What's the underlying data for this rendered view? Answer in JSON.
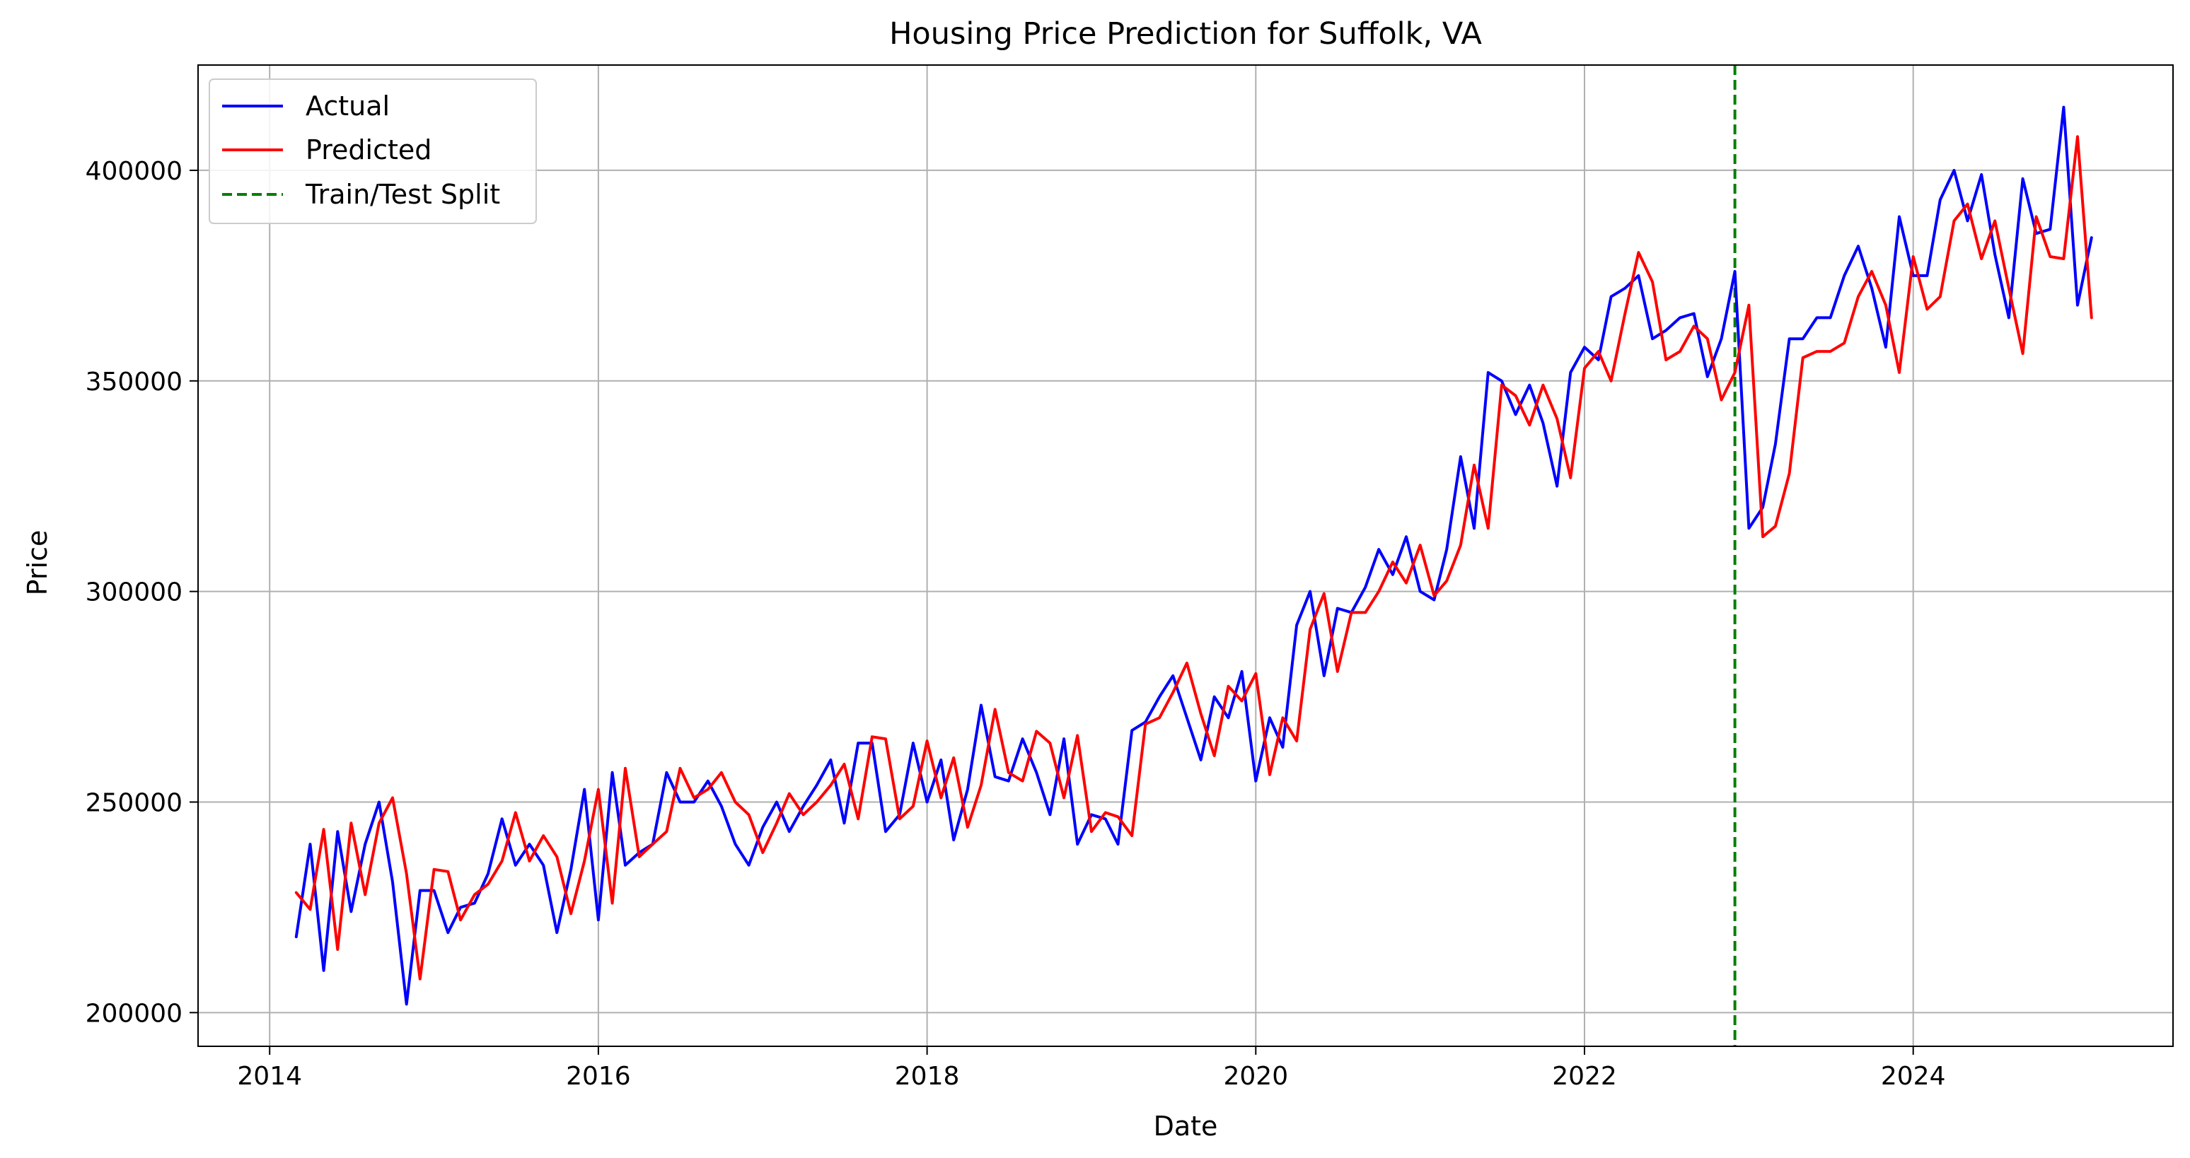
{
  "chart_data": {
    "type": "line",
    "title": "Housing Price Prediction for Suffolk, VA",
    "xlabel": "Date",
    "ylabel": "Price",
    "xlim": [
      "2013-07-26",
      "2025-08-01"
    ],
    "ylim": [
      192000,
      425000
    ],
    "x_ticks": [
      "2014",
      "2016",
      "2018",
      "2020",
      "2022",
      "2024"
    ],
    "y_ticks": [
      200000,
      250000,
      300000,
      350000,
      400000
    ],
    "grid": true,
    "legend_position": "top-left",
    "split": {
      "name": "Train/Test Split",
      "x": "2022-12-01",
      "color": "#008000"
    },
    "x": [
      "2014-03",
      "2014-04",
      "2014-05",
      "2014-06",
      "2014-07",
      "2014-08",
      "2014-09",
      "2014-10",
      "2014-11",
      "2014-12",
      "2015-01",
      "2015-02",
      "2015-03",
      "2015-04",
      "2015-05",
      "2015-06",
      "2015-07",
      "2015-08",
      "2015-09",
      "2015-10",
      "2015-11",
      "2015-12",
      "2016-01",
      "2016-02",
      "2016-03",
      "2016-04",
      "2016-05",
      "2016-06",
      "2016-07",
      "2016-08",
      "2016-09",
      "2016-10",
      "2016-11",
      "2016-12",
      "2017-01",
      "2017-02",
      "2017-03",
      "2017-04",
      "2017-05",
      "2017-06",
      "2017-07",
      "2017-08",
      "2017-09",
      "2017-10",
      "2017-11",
      "2017-12",
      "2018-01",
      "2018-02",
      "2018-03",
      "2018-04",
      "2018-05",
      "2018-06",
      "2018-07",
      "2018-08",
      "2018-09",
      "2018-10",
      "2018-11",
      "2018-12",
      "2019-01",
      "2019-02",
      "2019-03",
      "2019-04",
      "2019-05",
      "2019-06",
      "2019-07",
      "2019-08",
      "2019-09",
      "2019-10",
      "2019-11",
      "2019-12",
      "2020-01",
      "2020-02",
      "2020-03",
      "2020-04",
      "2020-05",
      "2020-06",
      "2020-07",
      "2020-08",
      "2020-09",
      "2020-10",
      "2020-11",
      "2020-12",
      "2021-01",
      "2021-02",
      "2021-03",
      "2021-04",
      "2021-05",
      "2021-06",
      "2021-07",
      "2021-08",
      "2021-09",
      "2021-10",
      "2021-11",
      "2021-12",
      "2022-01",
      "2022-02",
      "2022-03",
      "2022-04",
      "2022-05",
      "2022-06",
      "2022-07",
      "2022-08",
      "2022-09",
      "2022-10",
      "2022-11",
      "2022-12",
      "2023-01",
      "2023-02",
      "2023-03",
      "2023-04",
      "2023-05",
      "2023-06",
      "2023-07",
      "2023-08",
      "2023-09",
      "2023-10",
      "2023-11",
      "2023-12",
      "2024-01",
      "2024-02",
      "2024-03",
      "2024-04",
      "2024-05",
      "2024-06",
      "2024-07",
      "2024-08",
      "2024-09",
      "2024-10",
      "2024-11",
      "2024-12",
      "2025-01",
      "2025-02"
    ],
    "series": [
      {
        "name": "Actual",
        "color": "#0000ff",
        "values": [
          218000,
          240000,
          210000,
          243000,
          224000,
          240000,
          250000,
          231000,
          202000,
          229000,
          229000,
          219000,
          225000,
          226000,
          233000,
          246000,
          235000,
          240000,
          235000,
          219000,
          234000,
          253000,
          222000,
          257000,
          235000,
          238000,
          240000,
          257000,
          250000,
          250000,
          255000,
          249000,
          240000,
          235000,
          244000,
          250000,
          243000,
          249000,
          254000,
          260000,
          245000,
          264000,
          264000,
          243000,
          247000,
          264000,
          250000,
          260000,
          241000,
          253000,
          273000,
          256000,
          255000,
          265000,
          257000,
          247000,
          265000,
          240000,
          247000,
          246000,
          240000,
          267000,
          269000,
          275000,
          280000,
          270000,
          260000,
          275000,
          270000,
          281000,
          255000,
          270000,
          263000,
          292000,
          300000,
          280000,
          296000,
          295000,
          301000,
          310000,
          304000,
          313000,
          300000,
          298000,
          310000,
          332000,
          315000,
          352000,
          350000,
          342000,
          349000,
          340000,
          325000,
          352000,
          358000,
          355000,
          370000,
          372000,
          375000,
          360000,
          362000,
          365000,
          366000,
          351000,
          360000,
          376000,
          315000,
          320000,
          335000,
          360000,
          360000,
          365000,
          365000,
          375000,
          382000,
          372000,
          358000,
          389000,
          375000,
          375000,
          393000,
          400000,
          388000,
          399000,
          380000,
          365000,
          398000,
          385000,
          386000,
          415000,
          368000,
          384000
        ]
      },
      {
        "name": "Predicted",
        "color": "#ff0000",
        "values": [
          228500,
          224500,
          243500,
          215000,
          245000,
          228000,
          245000,
          251000,
          233000,
          208000,
          234000,
          233500,
          222000,
          228000,
          230500,
          236000,
          247500,
          236000,
          242000,
          237000,
          223500,
          236000,
          253000,
          226000,
          258000,
          237000,
          240000,
          243000,
          258000,
          251000,
          253000,
          257000,
          250000,
          247000,
          238000,
          245000,
          252000,
          247000,
          250000,
          254000,
          259000,
          246000,
          265500,
          265000,
          246000,
          249000,
          264500,
          251000,
          260500,
          244000,
          254000,
          272000,
          257000,
          255000,
          266800,
          264000,
          251000,
          265800,
          243000,
          247500,
          246500,
          242000,
          268500,
          270000,
          276000,
          283000,
          271000,
          261000,
          277500,
          274000,
          280500,
          256500,
          270000,
          264500,
          291000,
          299500,
          281000,
          295000,
          295000,
          300000,
          307000,
          302000,
          311000,
          299000,
          302500,
          311000,
          330000,
          315000,
          349000,
          346500,
          339500,
          349000,
          341000,
          327000,
          353000,
          357000,
          350000,
          366000,
          380500,
          373500,
          355000,
          357000,
          363000,
          360000,
          345500,
          352000,
          368000,
          313000,
          315500,
          328000,
          355500,
          357000,
          357000,
          359000,
          370000,
          376000,
          368000,
          352000,
          379500,
          367000,
          370000,
          388000,
          392000,
          379000,
          388000,
          372000,
          356500,
          389000,
          379500,
          379000,
          408000,
          365000
        ]
      }
    ]
  }
}
